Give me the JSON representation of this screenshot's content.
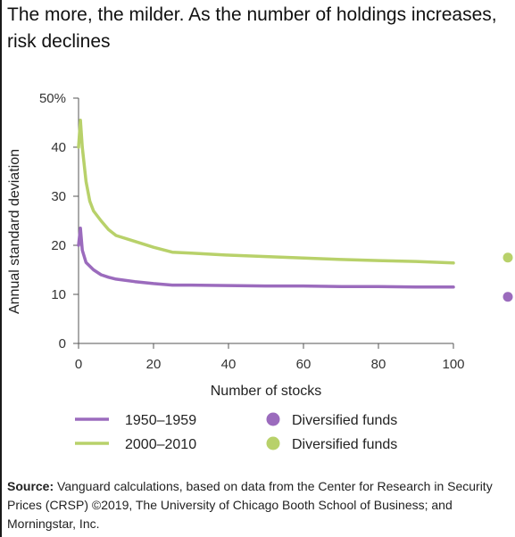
{
  "title": "The more, the milder. As the number of holdings increases, risk declines",
  "chart_data": {
    "type": "line",
    "xlabel": "Number of stocks",
    "ylabel": "Annual standard deviation",
    "xlim": [
      0,
      100
    ],
    "ylim": [
      0,
      50
    ],
    "xticks": [
      "0",
      "20",
      "40",
      "60",
      "80",
      "100"
    ],
    "yticks": [
      "0",
      "10",
      "20",
      "30",
      "40",
      "50%"
    ],
    "grid": false,
    "legend_position": "bottom",
    "series": [
      {
        "name": "1950–1959",
        "color": "#9b6bbd",
        "x": [
          0,
          0.5,
          1,
          2,
          4,
          6,
          8,
          10,
          15,
          20,
          25,
          30,
          40,
          50,
          60,
          70,
          80,
          90,
          100
        ],
        "y": [
          20,
          23.5,
          19,
          16.5,
          15,
          14,
          13.5,
          13.1,
          12.6,
          12.2,
          11.9,
          11.9,
          11.8,
          11.7,
          11.7,
          11.6,
          11.6,
          11.5,
          11.5
        ]
      },
      {
        "name": "2000–2010",
        "color": "#b8d16a",
        "x": [
          0,
          0.5,
          1,
          2,
          3,
          4,
          6,
          8,
          10,
          15,
          20,
          25,
          30,
          40,
          50,
          60,
          70,
          80,
          90,
          100
        ],
        "y": [
          40,
          45.5,
          40,
          33,
          29,
          27,
          25,
          23.2,
          22,
          20.8,
          19.6,
          18.6,
          18.4,
          18,
          17.7,
          17.4,
          17.1,
          16.9,
          16.7,
          16.4
        ]
      }
    ],
    "diversified_funds": [
      {
        "name": "Diversified funds",
        "value": 9.5,
        "color": "#9b6bbd"
      },
      {
        "name": "Diversified funds",
        "value": 17.5,
        "color": "#b8d16a"
      }
    ]
  },
  "source": {
    "label": "Source:",
    "text": " Vanguard calculations, based on data from the Center for Research in Security Prices (CRSP) ©2019, The University of Chicago Booth School of Business; and Morningstar, Inc."
  }
}
